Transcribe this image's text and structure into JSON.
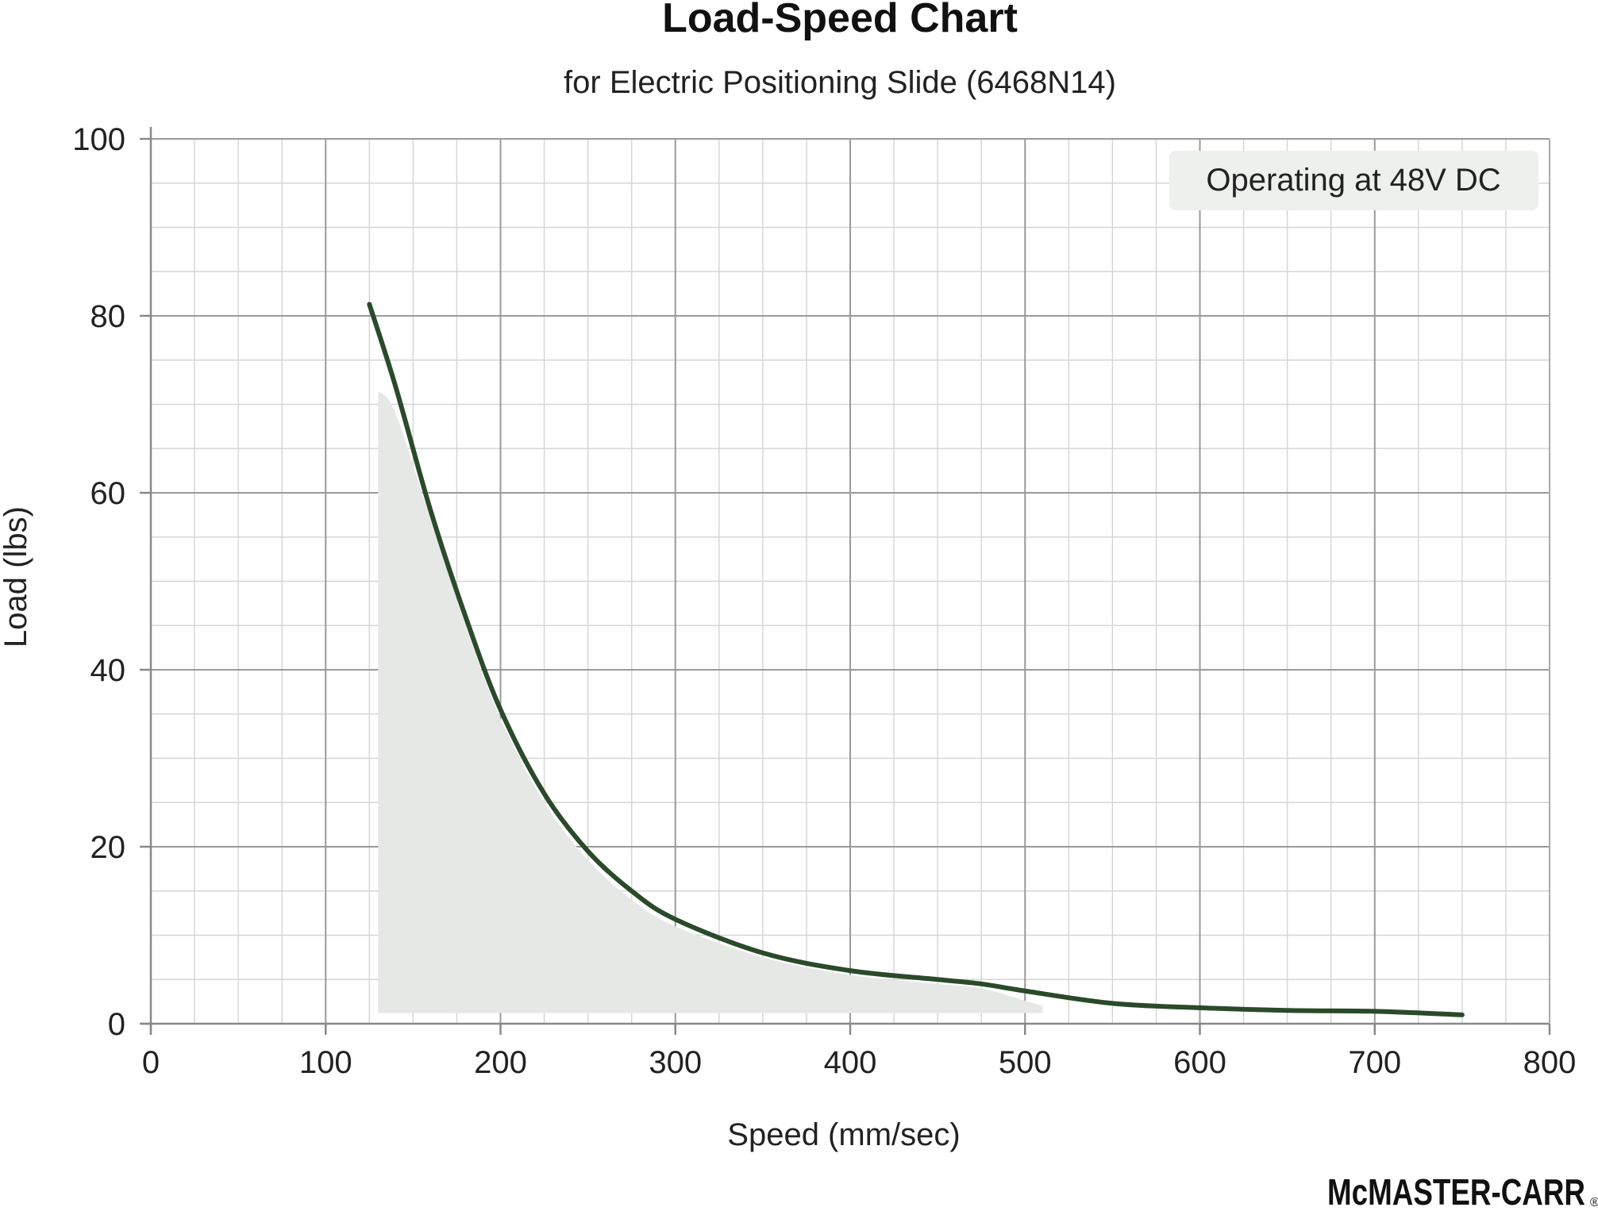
{
  "chart_data": {
    "type": "line",
    "title": "Load-Speed Chart",
    "subtitle": "for Electric Positioning Slide (6468N14)",
    "xlabel": "Speed (mm/sec)",
    "ylabel": "Load (lbs)",
    "xlim": [
      0,
      800
    ],
    "ylim": [
      0,
      100
    ],
    "x_ticks": [
      "0",
      "100",
      "200",
      "300",
      "400",
      "500",
      "600",
      "700",
      "800"
    ],
    "y_ticks": [
      "0",
      "20",
      "40",
      "60",
      "80",
      "100"
    ],
    "grid": true,
    "annotation": "Operating at 48V DC",
    "series": [
      {
        "color": "#2a4a2a",
        "x": [
          125,
          140,
          160,
          180,
          200,
          225,
          250,
          275,
          300,
          350,
          400,
          450,
          475,
          500,
          550,
          600,
          650,
          700,
          750
        ],
        "y": [
          81.3,
          72,
          58,
          46,
          35.5,
          26,
          19.5,
          15,
          11.8,
          8,
          6,
          5,
          4.5,
          3.7,
          2.3,
          1.8,
          1.5,
          1.4,
          1.0
        ]
      }
    ],
    "shaded_region": {
      "color": "#e5e8e5",
      "x": [
        130,
        140,
        160,
        180,
        200,
        225,
        250,
        275,
        300,
        350,
        400,
        450,
        475,
        500,
        510
      ],
      "y": [
        71.5,
        69,
        57,
        45,
        34.5,
        25,
        18.5,
        14,
        11,
        7.5,
        5.5,
        4.5,
        4,
        2.6,
        2.0
      ]
    }
  },
  "brand": {
    "logo_text": "McMASTER-CARR",
    "registered": "®"
  }
}
